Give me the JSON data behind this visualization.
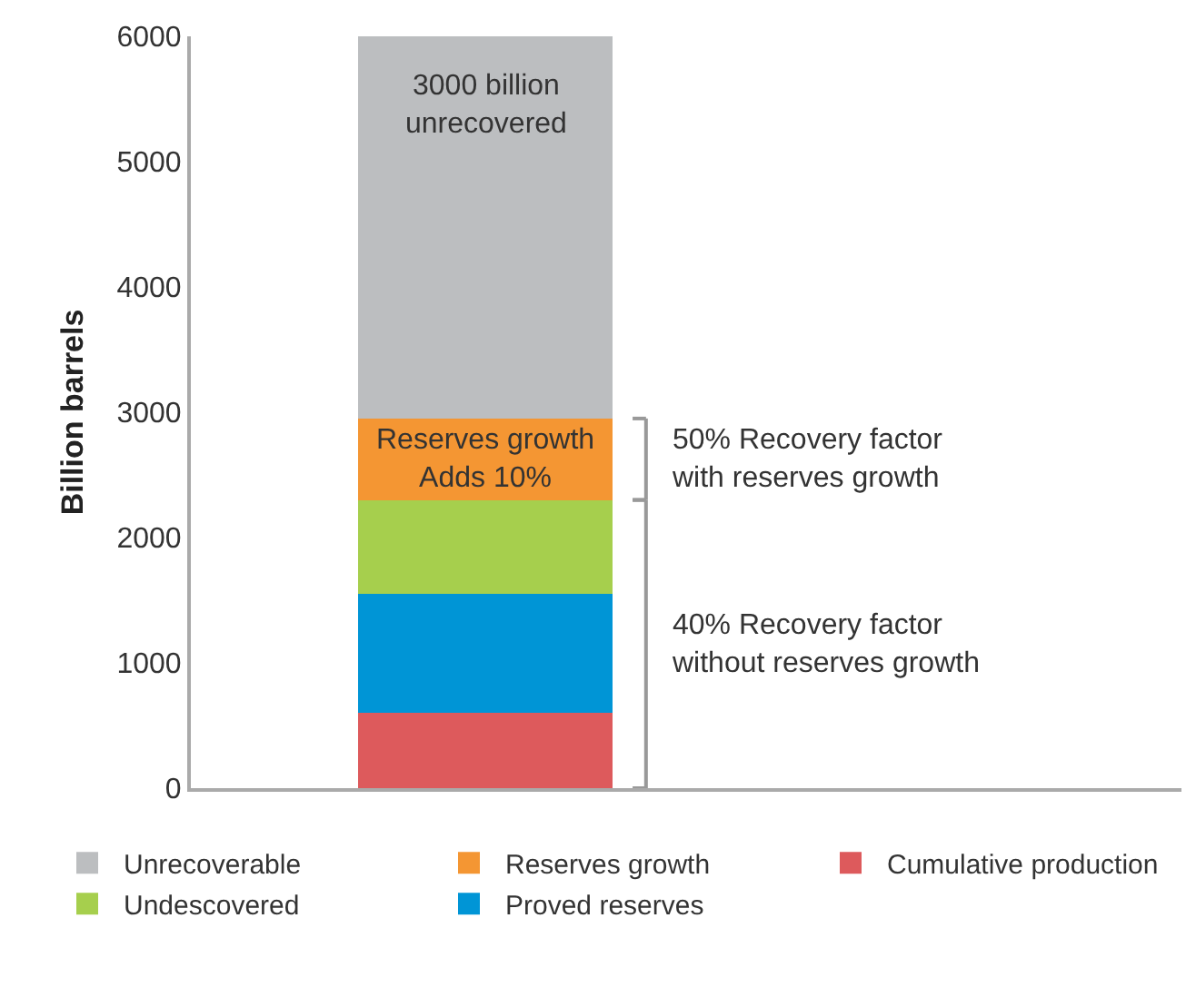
{
  "chart_data": {
    "type": "bar",
    "stacked": true,
    "ylabel": "Billion barrels",
    "categories": [
      null
    ],
    "series": [
      {
        "name": "Cumulative production",
        "color": "#dd5a5c",
        "values": [
          600
        ]
      },
      {
        "name": "Proved reserves",
        "color": "#0095d6",
        "values": [
          950
        ]
      },
      {
        "name": "Undescovered",
        "color": "#a6cf4d",
        "values": [
          750
        ]
      },
      {
        "name": "Reserves growth",
        "color": "#f49633",
        "values": [
          650
        ]
      },
      {
        "name": "Unrecoverable",
        "color": "#bcbec0",
        "values": [
          3050
        ]
      }
    ],
    "ylim": [
      0,
      6000
    ],
    "yticks": [
      0,
      1000,
      2000,
      3000,
      4000,
      5000,
      6000
    ],
    "grid": false,
    "legend": "bottom",
    "annotations": [
      "3000 billion\nunrecovered",
      "Reserves growth\nAdds 10%",
      "50% Recovery factor\nwith reserves growth",
      "40% Recovery factor\nwithout reserves growth"
    ]
  }
}
